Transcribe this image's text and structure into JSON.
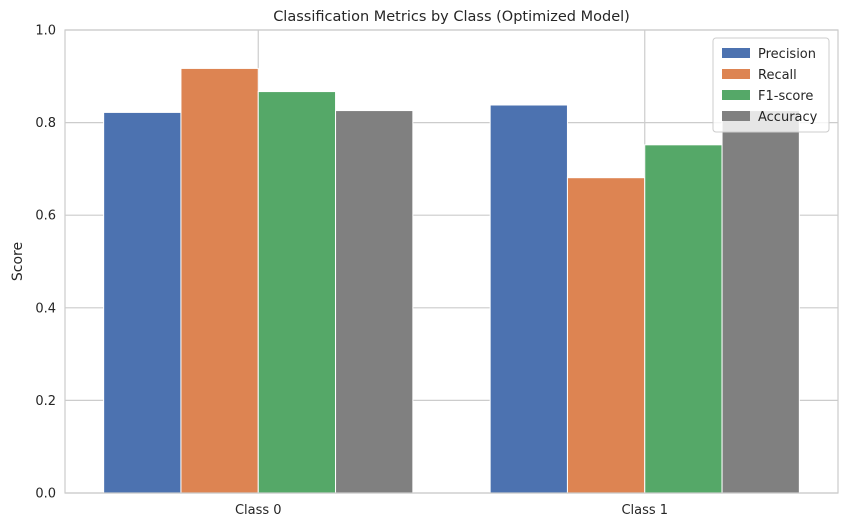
{
  "chart_data": {
    "type": "bar",
    "title": "Classification Metrics by Class (Optimized Model)",
    "xlabel": "",
    "ylabel": "Score",
    "categories": [
      "Class 0",
      "Class 1"
    ],
    "series": [
      {
        "name": "Precision",
        "color": "#4c72b0",
        "values": [
          0.822,
          0.838
        ]
      },
      {
        "name": "Recall",
        "color": "#dd8452",
        "values": [
          0.917,
          0.681
        ]
      },
      {
        "name": "F1-score",
        "color": "#55a868",
        "values": [
          0.867,
          0.752
        ]
      },
      {
        "name": "Accuracy",
        "color": "#808080",
        "values": [
          0.826,
          0.826
        ]
      }
    ],
    "ylim": [
      0,
      1.0
    ],
    "yticks": [
      "0.0",
      "0.2",
      "0.4",
      "0.6",
      "0.8",
      "1.0"
    ],
    "grid": true,
    "legend_position": "top-right"
  }
}
